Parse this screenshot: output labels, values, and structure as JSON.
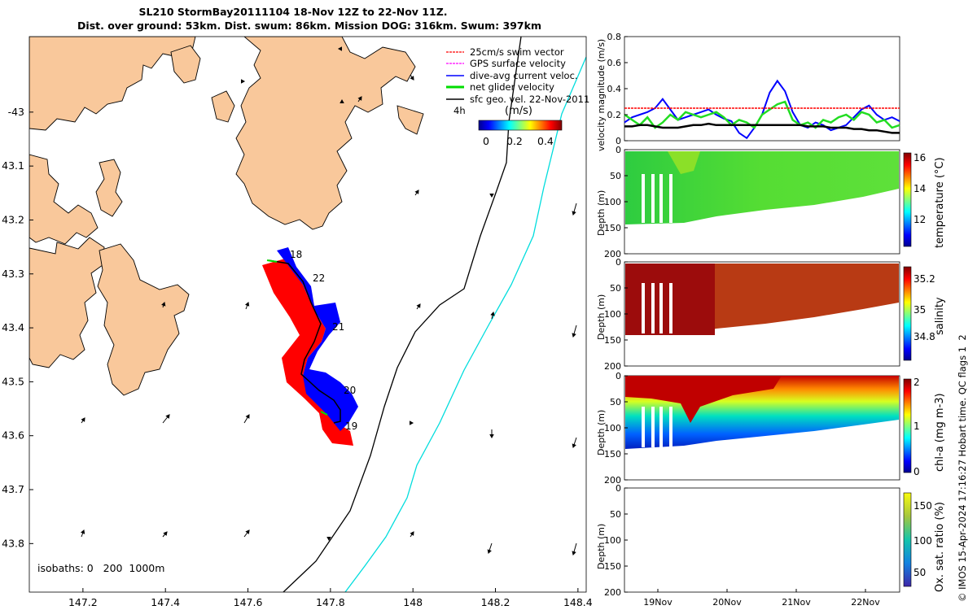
{
  "title": {
    "line1": "SL210 StormBay20111104 18-Nov 12Z to 22-Nov 11Z.",
    "line2": "Dist. over ground: 53km. Dist. swum: 86km. Mission DOG: 316km. Swum: 397km"
  },
  "colors": {
    "land": "#f9c89b",
    "swim": "#ff0000",
    "gps": "#ff00ff",
    "dive_avg": "#0000ff",
    "net": "#00dd00",
    "geo": "#000000",
    "isobath_200": "#000000",
    "isobath_1000": "#00dddd"
  },
  "chart_data": [
    {
      "type": "map",
      "name": "trajectory map",
      "x_ticks": [
        "147.2",
        "147.4",
        "147.6",
        "147.8",
        "148",
        "148.2",
        "148.4"
      ],
      "y_ticks": [
        "-43",
        "43.1",
        "43.2",
        "43.3",
        "43.4",
        "43.5",
        "43.6",
        "43.7",
        "43.8"
      ],
      "xlim": [
        147.07,
        148.42
      ],
      "ylim": [
        -43.89,
        -42.86
      ],
      "legend": [
        "25cm/s swim vector",
        "GPS surface velocity",
        "dive-avg current veloc.",
        "net glider velocity",
        "sfc geo. vel. 22-Nov-2011"
      ],
      "legend_extra": "4h",
      "colorbar_label": "(m/s)",
      "colorbar_ticks": [
        "0",
        "0.2",
        "0.4"
      ],
      "day_labels": [
        "18",
        "22",
        "21",
        "20",
        "19"
      ],
      "isobath_note": "isobaths: 0   200  1000m"
    },
    {
      "type": "line",
      "name": "velocity magnitude",
      "ylabel": "velocity magnitude (m/s)",
      "y_ticks": [
        "0",
        "0.2",
        "0.4",
        "0.6",
        "0.8"
      ],
      "ylim": [
        0,
        0.8
      ],
      "series": [
        {
          "name": "dive-avg current",
          "values": [
            0.14,
            0.18,
            0.2,
            0.22,
            0.25,
            0.32,
            0.24,
            0.16,
            0.18,
            0.2,
            0.22,
            0.24,
            0.2,
            0.17,
            0.15,
            0.06,
            0.02,
            0.1,
            0.2,
            0.37,
            0.46,
            0.38,
            0.22,
            0.12,
            0.1,
            0.14,
            0.12,
            0.08,
            0.1,
            0.12,
            0.18,
            0.24,
            0.27,
            0.2,
            0.16,
            0.18,
            0.15
          ]
        },
        {
          "name": "net glider",
          "values": [
            0.2,
            0.16,
            0.12,
            0.18,
            0.1,
            0.14,
            0.2,
            0.16,
            0.22,
            0.2,
            0.18,
            0.2,
            0.22,
            0.18,
            0.12,
            0.16,
            0.14,
            0.1,
            0.2,
            0.24,
            0.28,
            0.3,
            0.16,
            0.12,
            0.14,
            0.1,
            0.16,
            0.14,
            0.18,
            0.2,
            0.16,
            0.22,
            0.2,
            0.14,
            0.16,
            0.1,
            0.12
          ]
        },
        {
          "name": "sfc geo",
          "values": [
            0.11,
            0.11,
            0.12,
            0.12,
            0.11,
            0.1,
            0.1,
            0.1,
            0.11,
            0.12,
            0.12,
            0.13,
            0.12,
            0.12,
            0.12,
            0.12,
            0.12,
            0.12,
            0.12,
            0.12,
            0.12,
            0.12,
            0.12,
            0.12,
            0.11,
            0.11,
            0.11,
            0.1,
            0.1,
            0.1,
            0.09,
            0.09,
            0.08,
            0.08,
            0.07,
            0.06,
            0.06
          ]
        },
        {
          "name": "swim 25cm/s",
          "values": [
            0.25,
            0.25
          ]
        }
      ]
    },
    {
      "type": "heatmap",
      "name": "temperature",
      "ylabel": "Depth (m)",
      "y_ticks": [
        "0",
        "50",
        "100",
        "150",
        "200"
      ],
      "colorbar_label": "temperature (°C)",
      "colorbar_ticks": [
        "16",
        "14",
        "12"
      ]
    },
    {
      "type": "heatmap",
      "name": "salinity",
      "ylabel": "Depth (m)",
      "y_ticks": [
        "0",
        "50",
        "100",
        "150",
        "200"
      ],
      "colorbar_label": "salinity",
      "colorbar_ticks": [
        "35.2",
        "35",
        "34.8"
      ]
    },
    {
      "type": "heatmap",
      "name": "chl-a",
      "ylabel": "Depth (m)",
      "y_ticks": [
        "0",
        "50",
        "100",
        "150",
        "200"
      ],
      "colorbar_label": "chl-a (mg m-3)",
      "colorbar_ticks": [
        "2",
        "1",
        "0"
      ]
    },
    {
      "type": "heatmap",
      "name": "oxygen saturation",
      "ylabel": "Depth (m)",
      "y_ticks": [
        "0",
        "50",
        "100",
        "150",
        "200"
      ],
      "colorbar_label": "Ox. sat. ratio (%)",
      "colorbar_ticks": [
        "150",
        "100",
        "50"
      ],
      "x_ticks": [
        "19Nov",
        "20Nov",
        "21Nov",
        "22Nov"
      ]
    }
  ],
  "footer": "© IMOS 15-Apr-2024 17:16:27 Hobart time. QC flags 1  2"
}
